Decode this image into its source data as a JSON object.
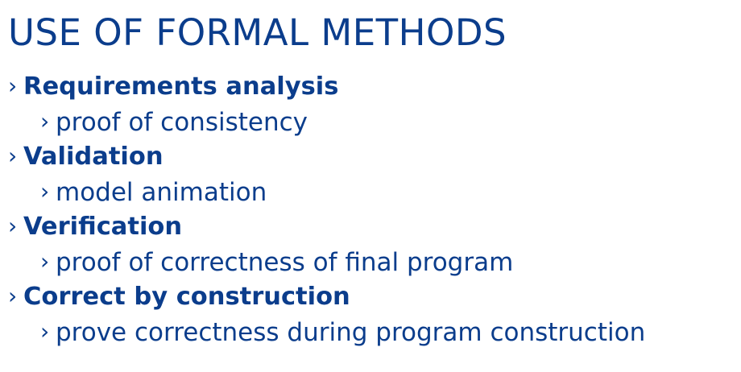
{
  "slide": {
    "title": "USE OF FORMAL METHODS",
    "bullet_marker": "›",
    "items": [
      {
        "level": 1,
        "text": "Requirements analysis"
      },
      {
        "level": 2,
        "text": "proof of consistency"
      },
      {
        "level": 1,
        "text": "Validation"
      },
      {
        "level": 2,
        "text": "model animation"
      },
      {
        "level": 1,
        "text": "Verification"
      },
      {
        "level": 2,
        "text": "proof of correctness of final program"
      },
      {
        "level": 1,
        "text": "Correct by construction"
      },
      {
        "level": 2,
        "text": "prove correctness during program construction"
      }
    ]
  },
  "colors": {
    "text": "#0b3d8c",
    "background": "#ffffff"
  }
}
